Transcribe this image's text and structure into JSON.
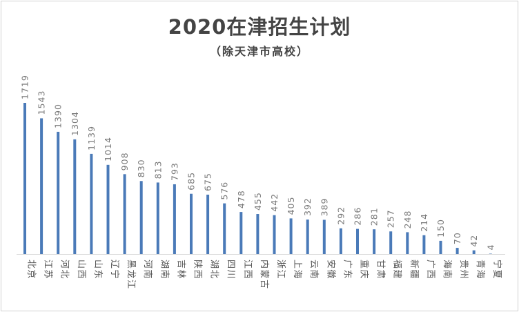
{
  "chart_data": {
    "type": "bar",
    "title": "2020在津招生计划",
    "subtitle": "（除天津市高校）",
    "categories": [
      "北京",
      "江苏",
      "河北",
      "山西",
      "山东",
      "辽宁",
      "黑龙江",
      "河南",
      "湖南",
      "吉林",
      "陕西",
      "湖北",
      "四川",
      "江西",
      "内蒙古",
      "浙江",
      "上海",
      "云南",
      "安徽",
      "广东",
      "重庆",
      "甘肃",
      "福建",
      "新疆",
      "广西",
      "海南",
      "贵州",
      "青海",
      "宁夏"
    ],
    "values": [
      1719,
      1543,
      1390,
      1304,
      1139,
      1014,
      908,
      830,
      813,
      793,
      685,
      675,
      576,
      478,
      455,
      442,
      405,
      392,
      389,
      292,
      286,
      281,
      257,
      248,
      214,
      150,
      70,
      42,
      4
    ],
    "bar_color": "#4a7ab8",
    "label_color": "#7a7a7a",
    "axis_color": "#d9d9d9",
    "grid": false,
    "legend": "none"
  }
}
